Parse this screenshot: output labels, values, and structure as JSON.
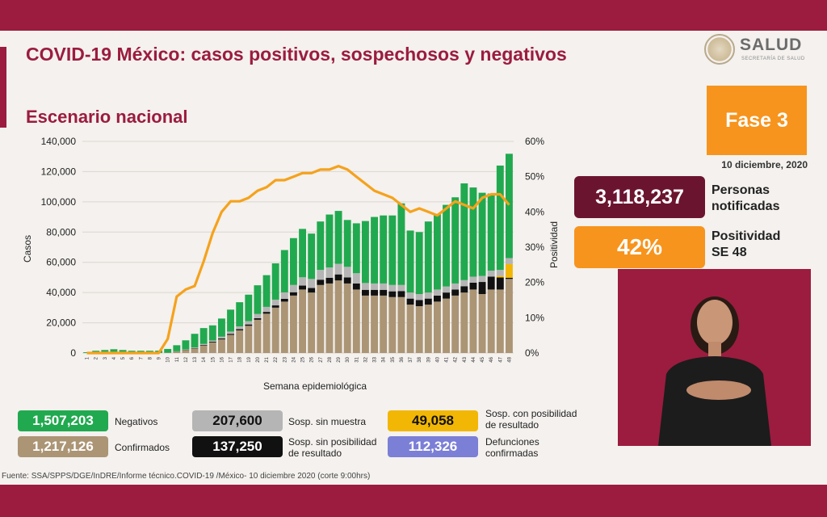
{
  "header": {
    "title": "COVID-19 México: casos positivos, sospechosos y negativos",
    "subtitle": "Escenario nacional"
  },
  "logo": {
    "main": "SALUD",
    "sub": "SECRETARÍA DE SALUD",
    "emblem_icon": "mexico-coat-of-arms-icon"
  },
  "phase": {
    "label": "Fase 3",
    "date": "10 diciembre, 2020"
  },
  "kpis": [
    {
      "value": "3,118,237",
      "label": "Personas\nnotificadas",
      "color": "#6b1430"
    },
    {
      "value": "42%",
      "label": "Positividad\nSE 48",
      "color": "#f7941d"
    }
  ],
  "legend": [
    {
      "value": "1,507,203",
      "label": "Negativos",
      "color": "#21a94f"
    },
    {
      "value": "207,600",
      "label": "Sosp. sin muestra",
      "color": "#b5b5b5"
    },
    {
      "value": "49,058",
      "label": "Sosp. con posibilidad\nde resultado",
      "color": "#f2b705"
    },
    {
      "value": "1,217,126",
      "label": "Confirmados",
      "color": "#ab9575"
    },
    {
      "value": "137,250",
      "label": "Sosp. sin posibilidad\nde resultado",
      "color": "#111111"
    },
    {
      "value": "112,326",
      "label": "Defunciones\nconfirmadas",
      "color": "#7b7fd6"
    }
  ],
  "source": "Fuente: SSA/SPPS/DGE/InDRE/Informe técnico.COVID-19 /México- 10 diciembre 2020 (corte 9:00hrs)",
  "interpreter": {
    "icon": "sign-language-interpreter-icon"
  },
  "chart_data": {
    "type": "bar",
    "stacked": true,
    "xlabel": "Semana epidemiológica",
    "ylabel": "Casos",
    "y2label": "Positividad",
    "ylim": [
      0,
      140000
    ],
    "y2lim": [
      0,
      60
    ],
    "yticks": [
      "0",
      "20,000",
      "40,000",
      "60,000",
      "80,000",
      "100,000",
      "120,000",
      "140,000"
    ],
    "y2ticks": [
      "0%",
      "10%",
      "20%",
      "30%",
      "40%",
      "50%",
      "60%"
    ],
    "categories": [
      "1",
      "2",
      "3",
      "4",
      "5",
      "6",
      "7",
      "8",
      "9",
      "10",
      "11",
      "12",
      "13",
      "14",
      "15",
      "16",
      "17",
      "18",
      "19",
      "20",
      "21",
      "22",
      "23",
      "24",
      "25",
      "26",
      "27",
      "28",
      "29",
      "30",
      "31",
      "32",
      "33",
      "34",
      "35",
      "36",
      "37",
      "38",
      "39",
      "40",
      "41",
      "42",
      "43",
      "44",
      "45",
      "46",
      "47",
      "48"
    ],
    "series": [
      {
        "name": "Confirmados",
        "color": "#ab9575",
        "values": [
          0,
          0,
          0,
          0,
          0,
          0,
          0,
          0,
          50,
          200,
          1000,
          2000,
          3000,
          5000,
          7000,
          9000,
          12000,
          15000,
          18000,
          22000,
          26000,
          30000,
          34000,
          38000,
          42000,
          40000,
          45000,
          46000,
          48000,
          46000,
          42000,
          38000,
          38000,
          38000,
          37000,
          37000,
          32000,
          31000,
          32000,
          34000,
          36000,
          38000,
          40000,
          42000,
          39000,
          42000,
          42000,
          49000
        ]
      },
      {
        "name": "Sosp. sin posibilidad de resultado",
        "color": "#111111",
        "values": [
          0,
          0,
          0,
          0,
          0,
          0,
          0,
          0,
          0,
          0,
          50,
          200,
          300,
          400,
          500,
          600,
          700,
          800,
          900,
          1000,
          1200,
          1500,
          1800,
          2200,
          2600,
          3000,
          3500,
          3800,
          4000,
          4000,
          4000,
          3800,
          3800,
          3800,
          3800,
          4000,
          4000,
          4000,
          4000,
          4000,
          4000,
          4000,
          4200,
          4500,
          8000,
          8500,
          8000,
          800
        ]
      },
      {
        "name": "Sosp. con posibilidad de resultado",
        "color": "#f2b705",
        "values": [
          0,
          0,
          0,
          0,
          0,
          0,
          0,
          0,
          0,
          0,
          0,
          0,
          0,
          0,
          0,
          0,
          0,
          0,
          0,
          0,
          0,
          0,
          0,
          0,
          0,
          0,
          0,
          0,
          0,
          0,
          0,
          0,
          0,
          0,
          0,
          0,
          0,
          0,
          0,
          0,
          0,
          0,
          0,
          0,
          0,
          0,
          1000,
          9000
        ]
      },
      {
        "name": "Sosp. sin muestra",
        "color": "#b5b5b5",
        "values": [
          0,
          0,
          0,
          0,
          0,
          0,
          0,
          0,
          0,
          0,
          100,
          200,
          400,
          600,
          800,
          1200,
          1500,
          1800,
          2200,
          2800,
          3300,
          3800,
          4300,
          4800,
          5500,
          6000,
          6500,
          6800,
          7000,
          7000,
          6800,
          4500,
          4200,
          4200,
          4200,
          4000,
          4000,
          4000,
          4000,
          4000,
          4000,
          4000,
          4000,
          4000,
          4000,
          4000,
          4000,
          4000
        ]
      },
      {
        "name": "Negativos",
        "color": "#21a94f",
        "values": [
          500,
          1500,
          2000,
          2500,
          2000,
          1500,
          1500,
          1500,
          1500,
          2500,
          4000,
          6000,
          9000,
          10500,
          10000,
          12000,
          14500,
          16000,
          17500,
          19000,
          21000,
          24000,
          28000,
          31000,
          32000,
          30000,
          32000,
          35000,
          35000,
          31000,
          33000,
          41000,
          44000,
          45000,
          46000,
          54000,
          41000,
          41000,
          47000,
          50000,
          54000,
          57000,
          64000,
          59000,
          55000,
          51000,
          69000,
          69000
        ]
      }
    ],
    "line": {
      "name": "Positividad",
      "color": "#f5a21c",
      "values": [
        0,
        0,
        0,
        0,
        0,
        0,
        0,
        0,
        0,
        4,
        16,
        18,
        19,
        26,
        34,
        40,
        43,
        43,
        44,
        46,
        47,
        49,
        49,
        50,
        51,
        51,
        52,
        52,
        53,
        52,
        50,
        48,
        46,
        45,
        44,
        42,
        40,
        41,
        40,
        39,
        41,
        43,
        42,
        41,
        44,
        45,
        45,
        42
      ]
    }
  }
}
